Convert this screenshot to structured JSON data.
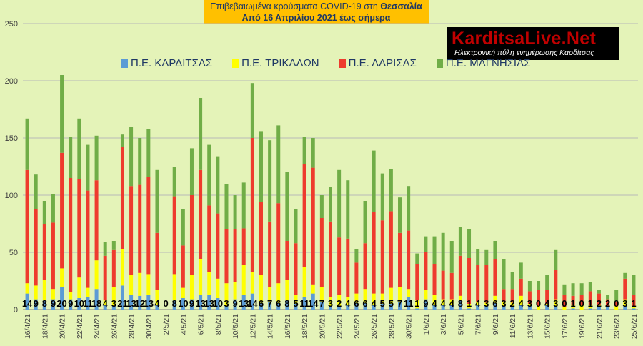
{
  "title": {
    "line1_prefix": "Επιβεβαιωμένα κρούσματα COVID-19 στη ",
    "line1_bold": "Θεσσαλία",
    "line2": "Από 16 Απριλίου 2021 έως σήμερα"
  },
  "logo": {
    "main": "KarditsaLive.Net",
    "subtitle": "Ηλεκτρονική πύλη ενημέρωσης Καρδίτσας"
  },
  "colors": {
    "karditsa": "#5b9bd5",
    "trikala": "#ffff00",
    "larisa": "#ee3b2d",
    "magnisia": "#70ad47"
  },
  "chart_data": {
    "type": "bar",
    "stacked": true,
    "ylim": [
      0,
      250
    ],
    "yticks": [
      0,
      50,
      100,
      150,
      200,
      250
    ],
    "grid": true,
    "legend": "top",
    "categories": [
      "16/4/21",
      "17/4/21",
      "18/4/21",
      "19/4/21",
      "20/4/21",
      "21/4/21",
      "22/4/21",
      "23/4/21",
      "24/4/21",
      "25/4/21",
      "26/4/21",
      "27/4/21",
      "28/4/21",
      "29/4/21",
      "30/4/21",
      "1/5/21",
      "2/5/21",
      "3/5/21",
      "4/5/21",
      "5/5/21",
      "6/5/21",
      "7/5/21",
      "8/5/21",
      "9/5/21",
      "10/5/21",
      "11/5/21",
      "12/5/21",
      "13/5/21",
      "14/5/21",
      "15/5/21",
      "16/5/21",
      "17/5/21",
      "18/5/21",
      "19/5/21",
      "20/5/21",
      "21/5/21",
      "22/5/21",
      "23/5/21",
      "24/5/21",
      "25/5/21",
      "26/5/21",
      "27/5/21",
      "28/5/21",
      "29/5/21",
      "30/5/21",
      "31/5/21",
      "1/6/21",
      "2/6/21",
      "3/6/21",
      "4/6/21",
      "5/6/21",
      "6/6/21",
      "7/6/21",
      "8/6/21",
      "9/6/21",
      "10/6/21",
      "11/6/21",
      "12/6/21",
      "13/6/21",
      "14/6/21",
      "15/6/21",
      "16/6/21",
      "17/6/21",
      "18/6/21",
      "19/6/21",
      "20/6/21",
      "21/6/21",
      "22/6/21",
      "23/6/21",
      "24/6/21",
      "25/6/21"
    ],
    "xtick_labels": [
      "16/4/21",
      "18/4/21",
      "20/4/21",
      "22/4/21",
      "24/4/21",
      "26/4/21",
      "28/4/21",
      "30/4/21",
      "2/5/21",
      "4/5/21",
      "6/5/21",
      "8/5/21",
      "10/5/21",
      "12/5/21",
      "14/5/21",
      "16/5/21",
      "18/5/21",
      "20/5/21",
      "22/5/21",
      "24/5/21",
      "26/5/21",
      "28/5/21",
      "30/5/21",
      "1/6/21",
      "3/6/21",
      "5/6/21",
      "7/6/21",
      "9/6/21",
      "11/6/21",
      "13/6/21",
      "15/6/21",
      "17/6/21",
      "19/6/21",
      "21/6/21",
      "23/6/21",
      "25/6/21"
    ],
    "series": [
      {
        "name": "Π.Ε. ΚΑΡΔΙΤΣΑΣ",
        "values": [
          14,
          9,
          8,
          9,
          20,
          9,
          10,
          11,
          18,
          4,
          3,
          21,
          13,
          12,
          13,
          4,
          0,
          8,
          10,
          9,
          13,
          13,
          10,
          3,
          9,
          13,
          14,
          6,
          7,
          6,
          8,
          5,
          11,
          14,
          7,
          3,
          2,
          4,
          6,
          6,
          4,
          5,
          5,
          7,
          11,
          1,
          9,
          4,
          4,
          4,
          8,
          1,
          4,
          3,
          6,
          3,
          2,
          4,
          3,
          0,
          4,
          3,
          0,
          1,
          0,
          1,
          2,
          2,
          0,
          3,
          1
        ]
      },
      {
        "name": "Π.Ε. ΤΡΙΚΑΛΩΝ",
        "values": [
          9,
          12,
          18,
          9,
          16,
          6,
          18,
          8,
          25,
          4,
          17,
          32,
          17,
          20,
          18,
          13,
          0,
          23,
          9,
          21,
          31,
          20,
          17,
          20,
          15,
          26,
          19,
          24,
          13,
          17,
          18,
          8,
          26,
          8,
          13,
          8,
          11,
          7,
          8,
          12,
          10,
          9,
          14,
          13,
          7,
          7,
          8,
          9,
          5,
          5,
          4,
          4,
          3,
          3,
          6,
          4,
          4,
          8,
          2,
          3,
          1,
          6,
          2,
          3,
          4,
          3,
          2,
          0,
          3,
          6,
          1
        ]
      },
      {
        "name": "Π.Ε. ΛΑΡΙΣΑΣ",
        "values": [
          99,
          67,
          49,
          58,
          101,
          100,
          86,
          85,
          70,
          39,
          32,
          89,
          78,
          77,
          85,
          50,
          0,
          68,
          37,
          70,
          78,
          58,
          57,
          47,
          46,
          32,
          117,
          64,
          57,
          70,
          34,
          45,
          90,
          102,
          60,
          66,
          50,
          51,
          27,
          40,
          71,
          64,
          67,
          47,
          51,
          32,
          33,
          27,
          25,
          23,
          35,
          40,
          32,
          33,
          32,
          11,
          12,
          15,
          11,
          14,
          12,
          26,
          11,
          8,
          9,
          12,
          10,
          7,
          4,
          18,
          11
        ]
      },
      {
        "name": "Π.Ε. ΜΑΓΝΗΣΙΑΣ",
        "values": [
          45,
          30,
          20,
          25,
          68,
          36,
          53,
          40,
          39,
          12,
          8,
          11,
          52,
          41,
          42,
          55,
          0,
          26,
          32,
          41,
          63,
          53,
          50,
          40,
          30,
          40,
          48,
          62,
          71,
          68,
          60,
          30,
          24,
          26,
          20,
          30,
          59,
          51,
          12,
          37,
          54,
          41,
          37,
          31,
          39,
          9,
          14,
          24,
          33,
          28,
          25,
          25,
          14,
          13,
          16,
          26,
          15,
          14,
          9,
          8,
          13,
          17,
          9,
          11,
          10,
          8,
          3,
          4,
          10,
          5,
          17
        ]
      }
    ]
  }
}
